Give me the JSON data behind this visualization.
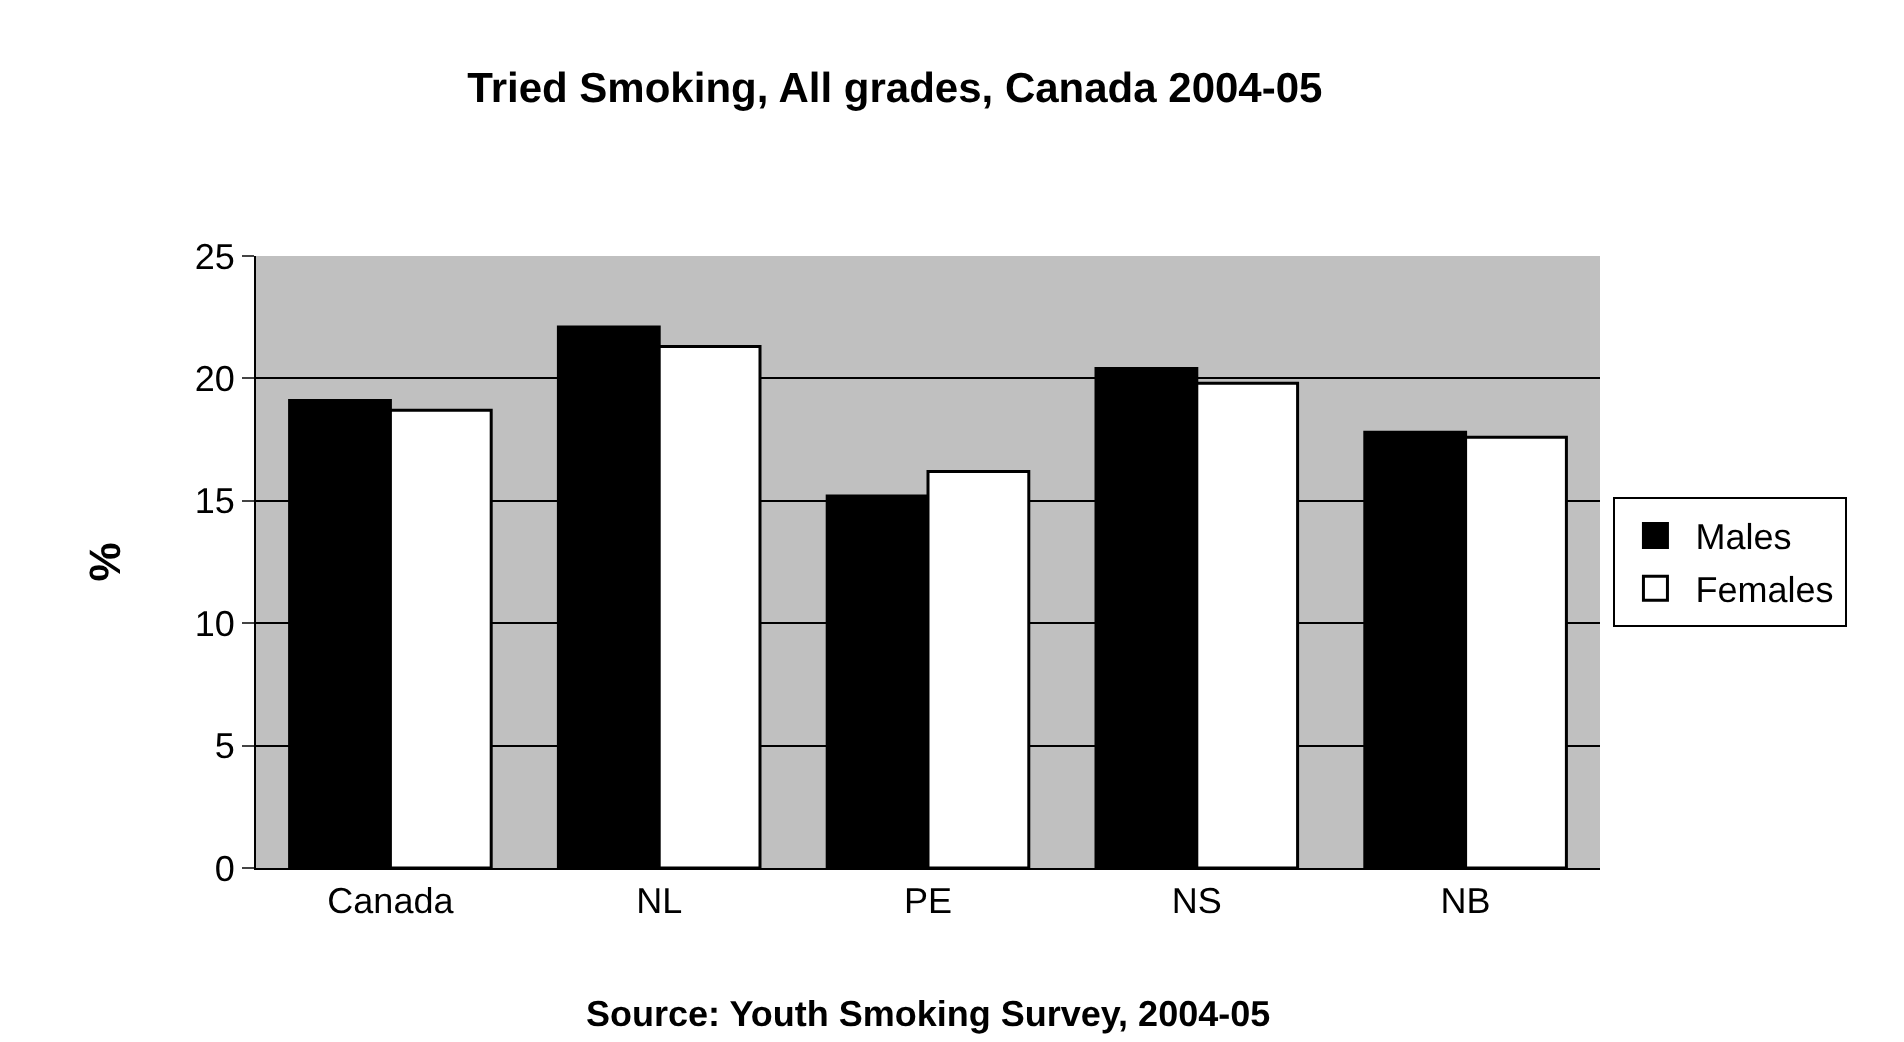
{
  "chart_data": {
    "type": "bar",
    "title": "Tried Smoking, All grades, Canada 2004-05",
    "ylabel": "%",
    "categories": [
      "Canada",
      "NL",
      "PE",
      "NS",
      "NB"
    ],
    "series": [
      {
        "name": "Males",
        "color": "#000000",
        "values": [
          19.1,
          22.1,
          15.2,
          20.4,
          17.8
        ]
      },
      {
        "name": "Females",
        "color": "#ffffff",
        "values": [
          18.7,
          21.3,
          16.2,
          19.8,
          17.6
        ]
      }
    ],
    "ylim": [
      0,
      25
    ],
    "yticks": [
      0,
      5,
      10,
      15,
      20,
      25
    ],
    "grid": "y",
    "legend": "right",
    "annotations": [
      "Source: Youth Smoking Survey, 2004-05"
    ]
  }
}
